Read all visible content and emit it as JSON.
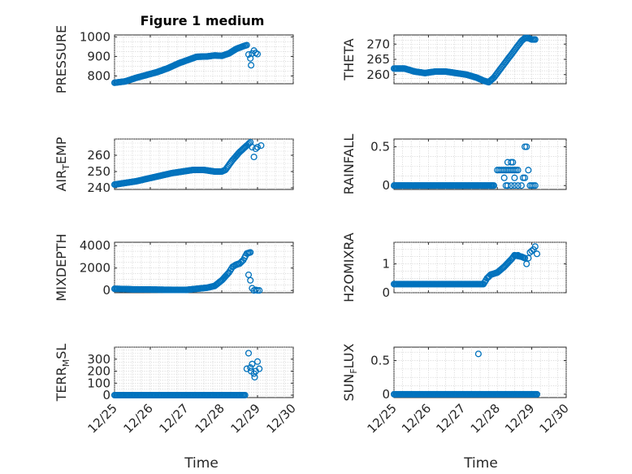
{
  "figure": {
    "title": "Figure 1 medium",
    "marker_color": "#0072bd",
    "xlabel": "Time"
  },
  "chart_data": [
    {
      "type": "scatter",
      "name": "pressure",
      "ylabel": "PRESSURE",
      "xlim": [
        25,
        30
      ],
      "xticks": [
        "12/25",
        "12/26",
        "12/27",
        "12/28",
        "12/29",
        "12/30"
      ],
      "show_xtick_labels": false,
      "ylim": [
        760,
        1010
      ],
      "yticks": [
        800,
        900,
        1000
      ],
      "trend": [
        [
          25.0,
          765
        ],
        [
          25.3,
          772
        ],
        [
          25.6,
          790
        ],
        [
          25.9,
          805
        ],
        [
          26.2,
          820
        ],
        [
          26.5,
          840
        ],
        [
          26.8,
          865
        ],
        [
          27.1,
          885
        ],
        [
          27.3,
          898
        ],
        [
          27.6,
          900
        ],
        [
          27.8,
          905
        ],
        [
          28.0,
          903
        ],
        [
          28.2,
          915
        ],
        [
          28.4,
          938
        ],
        [
          28.6,
          952
        ],
        [
          28.7,
          958
        ]
      ],
      "extra": [
        [
          28.75,
          910
        ],
        [
          28.8,
          890
        ],
        [
          28.82,
          855
        ],
        [
          28.85,
          915
        ],
        [
          28.9,
          930
        ],
        [
          28.95,
          918
        ],
        [
          29.0,
          912
        ]
      ]
    },
    {
      "type": "scatter",
      "name": "theta",
      "ylabel": "THETA",
      "xlim": [
        25,
        30
      ],
      "xticks": [
        "12/25",
        "12/26",
        "12/27",
        "12/28",
        "12/29",
        "12/30"
      ],
      "show_xtick_labels": false,
      "ylim": [
        257,
        273
      ],
      "yticks": [
        260,
        265,
        270
      ],
      "trend": [
        [
          25.0,
          262
        ],
        [
          25.3,
          262
        ],
        [
          25.6,
          261
        ],
        [
          25.9,
          260.5
        ],
        [
          26.2,
          261
        ],
        [
          26.5,
          261
        ],
        [
          26.8,
          260.5
        ],
        [
          27.1,
          260
        ],
        [
          27.4,
          259
        ],
        [
          27.6,
          258
        ],
        [
          27.75,
          257.5
        ],
        [
          27.9,
          259
        ],
        [
          28.1,
          262
        ],
        [
          28.3,
          265
        ],
        [
          28.5,
          268
        ],
        [
          28.7,
          271
        ],
        [
          28.8,
          272
        ],
        [
          28.9,
          272
        ],
        [
          29.0,
          271.5
        ],
        [
          29.1,
          271.5
        ]
      ],
      "extra": []
    },
    {
      "type": "scatter",
      "name": "air_temp",
      "ylabel": "AIR_TEMP",
      "xlim": [
        25,
        30
      ],
      "xticks": [
        "12/25",
        "12/26",
        "12/27",
        "12/28",
        "12/29",
        "12/30"
      ],
      "show_xtick_labels": false,
      "ylim": [
        239,
        270
      ],
      "yticks": [
        240,
        250,
        260
      ],
      "trend": [
        [
          25.0,
          242
        ],
        [
          25.3,
          243
        ],
        [
          25.6,
          244
        ],
        [
          26.0,
          246
        ],
        [
          26.3,
          247.5
        ],
        [
          26.6,
          249
        ],
        [
          26.9,
          250
        ],
        [
          27.2,
          251
        ],
        [
          27.5,
          251
        ],
        [
          27.8,
          250
        ],
        [
          28.0,
          250
        ],
        [
          28.1,
          251
        ],
        [
          28.3,
          257
        ],
        [
          28.5,
          262
        ],
        [
          28.7,
          266
        ],
        [
          28.8,
          268
        ]
      ],
      "extra": [
        [
          28.85,
          265
        ],
        [
          28.9,
          259
        ],
        [
          28.95,
          264
        ],
        [
          29.0,
          265
        ],
        [
          29.1,
          266
        ]
      ]
    },
    {
      "type": "scatter",
      "name": "rainfall",
      "ylabel": "RAINFALL",
      "xlim": [
        25,
        30
      ],
      "xticks": [
        "12/25",
        "12/26",
        "12/27",
        "12/28",
        "12/29",
        "12/30"
      ],
      "show_xtick_labels": false,
      "ylim": [
        -0.05,
        0.6
      ],
      "yticks": [
        0,
        0.5
      ],
      "trend": [
        [
          25.0,
          0
        ],
        [
          27.9,
          0
        ]
      ],
      "extra": [
        [
          28.0,
          0.2
        ],
        [
          28.05,
          0.2
        ],
        [
          28.1,
          0.2
        ],
        [
          28.15,
          0.2
        ],
        [
          28.2,
          0.2
        ],
        [
          28.25,
          0.2
        ],
        [
          28.3,
          0.2
        ],
        [
          28.35,
          0.2
        ],
        [
          28.4,
          0.2
        ],
        [
          28.45,
          0.2
        ],
        [
          28.5,
          0.2
        ],
        [
          28.55,
          0.2
        ],
        [
          28.6,
          0.2
        ],
        [
          28.2,
          0.1
        ],
        [
          28.5,
          0.1
        ],
        [
          28.3,
          0.3
        ],
        [
          28.4,
          0.3
        ],
        [
          28.45,
          0.3
        ],
        [
          28.25,
          0.0
        ],
        [
          28.3,
          0.0
        ],
        [
          28.4,
          0.0
        ],
        [
          28.5,
          0.0
        ],
        [
          28.6,
          0.0
        ],
        [
          28.7,
          0.0
        ],
        [
          28.75,
          0.1
        ],
        [
          28.8,
          0.1
        ],
        [
          28.8,
          0.5
        ],
        [
          28.85,
          0.5
        ],
        [
          28.9,
          0.2
        ],
        [
          28.95,
          0
        ],
        [
          29.0,
          0
        ],
        [
          29.05,
          0
        ],
        [
          29.1,
          0
        ]
      ]
    },
    {
      "type": "scatter",
      "name": "mixdepth",
      "ylabel": "MIXDEPTH",
      "xlim": [
        25,
        30
      ],
      "xticks": [
        "12/25",
        "12/26",
        "12/27",
        "12/28",
        "12/29",
        "12/30"
      ],
      "show_xtick_labels": false,
      "ylim": [
        -200,
        4300
      ],
      "yticks": [
        0,
        2000,
        4000
      ],
      "trend": [
        [
          25.0,
          150
        ],
        [
          25.5,
          100
        ],
        [
          26.0,
          80
        ],
        [
          26.5,
          60
        ],
        [
          27.0,
          50
        ],
        [
          27.3,
          150
        ],
        [
          27.6,
          250
        ],
        [
          27.8,
          400
        ],
        [
          28.0,
          900
        ],
        [
          28.2,
          1600
        ],
        [
          28.3,
          2100
        ],
        [
          28.4,
          2300
        ],
        [
          28.5,
          2400
        ],
        [
          28.6,
          2700
        ],
        [
          28.7,
          3300
        ],
        [
          28.8,
          3400
        ]
      ],
      "extra": [
        [
          28.75,
          1400
        ],
        [
          28.8,
          900
        ],
        [
          28.85,
          200
        ],
        [
          28.9,
          0
        ],
        [
          28.95,
          50
        ],
        [
          29.0,
          0
        ],
        [
          29.05,
          0
        ]
      ]
    },
    {
      "type": "scatter",
      "name": "h2omixra",
      "ylabel": "H2OMIXRA",
      "xlim": [
        25,
        30
      ],
      "xticks": [
        "12/25",
        "12/26",
        "12/27",
        "12/28",
        "12/29",
        "12/30"
      ],
      "show_xtick_labels": false,
      "ylim": [
        0,
        1.75
      ],
      "yticks": [
        0,
        1
      ],
      "trend": [
        [
          25.0,
          0.3
        ],
        [
          27.6,
          0.3
        ],
        [
          27.7,
          0.5
        ],
        [
          27.8,
          0.62
        ],
        [
          28.0,
          0.7
        ],
        [
          28.2,
          0.9
        ],
        [
          28.4,
          1.15
        ],
        [
          28.5,
          1.3
        ],
        [
          28.7,
          1.25
        ],
        [
          28.8,
          1.2
        ]
      ],
      "extra": [
        [
          27.75,
          0.55
        ],
        [
          28.6,
          1.3
        ],
        [
          28.85,
          1.0
        ],
        [
          28.9,
          1.2
        ],
        [
          28.95,
          1.4
        ],
        [
          29.0,
          1.45
        ],
        [
          29.05,
          1.5
        ],
        [
          29.1,
          1.6
        ],
        [
          29.15,
          1.35
        ]
      ]
    },
    {
      "type": "scatter",
      "name": "terr_msl",
      "ylabel": "TERR_MSL",
      "xlim": [
        25,
        30
      ],
      "xticks": [
        "12/25",
        "12/26",
        "12/27",
        "12/28",
        "12/29",
        "12/30"
      ],
      "show_xtick_labels": true,
      "ylim": [
        -20,
        400
      ],
      "yticks": [
        0,
        100,
        200,
        300
      ],
      "trend": [
        [
          25.0,
          0
        ],
        [
          28.65,
          0
        ]
      ],
      "extra": [
        [
          28.7,
          220
        ],
        [
          28.75,
          350
        ],
        [
          28.8,
          230
        ],
        [
          28.82,
          200
        ],
        [
          28.85,
          260
        ],
        [
          28.9,
          180
        ],
        [
          28.92,
          150
        ],
        [
          28.95,
          200
        ],
        [
          29.0,
          280
        ],
        [
          29.05,
          220
        ]
      ]
    },
    {
      "type": "scatter",
      "name": "sun_flux",
      "ylabel": "SUN_FLUX",
      "xlim": [
        25,
        30
      ],
      "xticks": [
        "12/25",
        "12/26",
        "12/27",
        "12/28",
        "12/29",
        "12/30"
      ],
      "show_xtick_labels": true,
      "ylim": [
        -0.05,
        0.7
      ],
      "yticks": [
        0,
        0.5
      ],
      "trend": [
        [
          25.0,
          0
        ],
        [
          29.15,
          0
        ]
      ],
      "extra": [
        [
          27.45,
          0.6
        ]
      ]
    }
  ]
}
